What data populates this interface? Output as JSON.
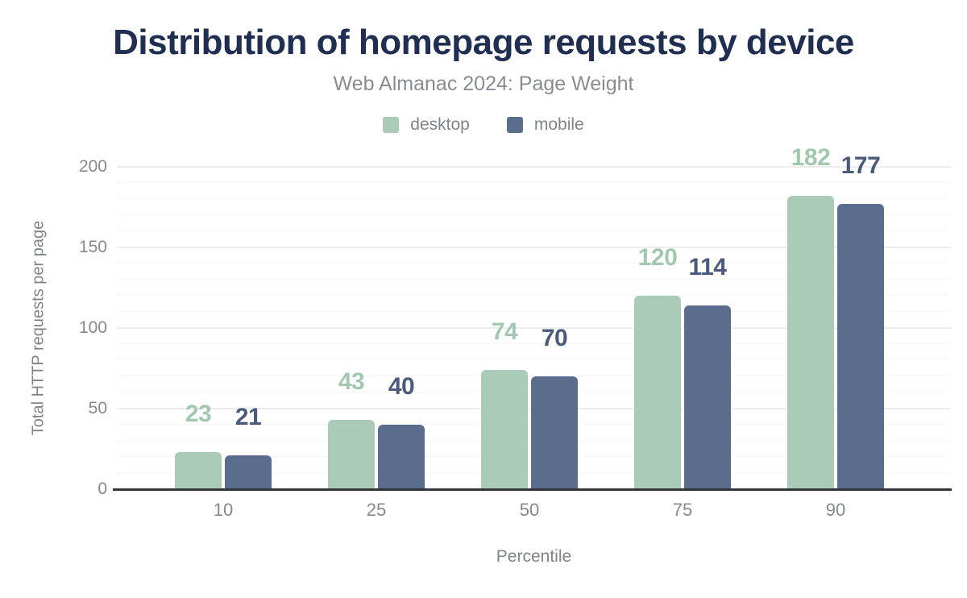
{
  "header": {
    "title": "Distribution of homepage requests by device",
    "subtitle": "Web Almanac 2024: Page Weight"
  },
  "colors": {
    "title_text": "#202e52",
    "muted_text": "#7d848b",
    "tick_text": "#85898f",
    "axis_line": "#313438",
    "grid_major": "#ededed",
    "grid_minor": "#f7f7f7",
    "desktop": "#a9cbb8",
    "mobile": "#5b6d8d",
    "desktop_value_label": "#a2c8b0",
    "mobile_value_label": "#4a5b7b"
  },
  "chart_data": {
    "type": "bar",
    "title": "Distribution of homepage requests by device",
    "subtitle": "Web Almanac 2024: Page Weight",
    "categories": [
      "10",
      "25",
      "50",
      "75",
      "90"
    ],
    "series": [
      {
        "name": "desktop",
        "color": "#a9cbb8",
        "label_color": "#a2c8b0",
        "values": [
          23,
          43,
          74,
          120,
          182
        ]
      },
      {
        "name": "mobile",
        "color": "#5b6d8d",
        "label_color": "#4a5b7b",
        "values": [
          21,
          40,
          70,
          114,
          177
        ]
      }
    ],
    "xlabel": "Percentile",
    "ylabel": "Total HTTP requests per page",
    "ylim": [
      0,
      200
    ],
    "yticks": [
      0,
      50,
      100,
      150,
      200
    ],
    "grid": {
      "orientation": "horizontal",
      "minor_step": 10,
      "major_step": 50
    },
    "legend_position": "top",
    "value_labels": true
  }
}
